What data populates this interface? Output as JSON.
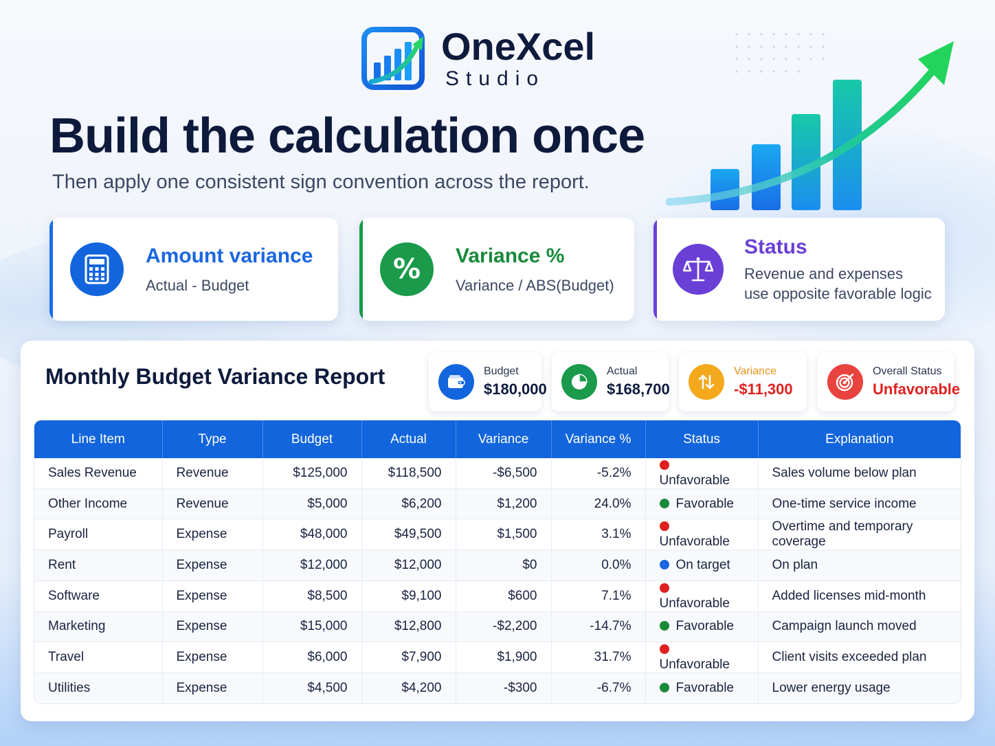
{
  "brand": {
    "name": "OneXcel",
    "sub": "Studio"
  },
  "hero": {
    "title": "Build the calculation once",
    "subtitle": "Then apply one consistent sign convention across the report."
  },
  "cards": [
    {
      "title": "Amount variance",
      "desc": "Actual - Budget",
      "icon": "calculator-icon",
      "color": "#1a6ee8"
    },
    {
      "title": "Variance %",
      "desc": "Variance / ABS(Budget)",
      "icon": "percent-icon",
      "color": "#1a9a4a"
    },
    {
      "title": "Status",
      "desc_line1": "Revenue and expenses",
      "desc_line2": "use opposite favorable logic",
      "icon": "balance-scale-icon",
      "color": "#6a3fd6"
    }
  ],
  "report": {
    "title": "Monthly Budget Variance Report",
    "kpis": [
      {
        "label": "Budget",
        "value": "$180,000",
        "icon": "wallet-icon",
        "color": "#1265dc"
      },
      {
        "label": "Actual",
        "value": "$168,700",
        "icon": "pie-chart-icon",
        "color": "#1a9a4a"
      },
      {
        "label": "Variance",
        "value": "-$11,300",
        "icon": "up-down-arrows-icon",
        "color": "#f4a81c"
      },
      {
        "label": "Overall Status",
        "value": "Unfavorable",
        "icon": "target-icon",
        "color": "#e8433f"
      }
    ],
    "columns": [
      "Line Item",
      "Type",
      "Budget",
      "Actual",
      "Variance",
      "Variance %",
      "Status",
      "Explanation"
    ],
    "rows": [
      {
        "item": "Sales Revenue",
        "type": "Revenue",
        "budget": "$125,000",
        "actual": "$118,500",
        "variance": "-$6,500",
        "pct": "-5.2%",
        "status": "Unfavorable",
        "expl": "Sales volume below plan",
        "tone": "neg",
        "st": "unf"
      },
      {
        "item": "Other Income",
        "type": "Revenue",
        "budget": "$5,000",
        "actual": "$6,200",
        "variance": "$1,200",
        "pct": "24.0%",
        "status": "Favorable",
        "expl": "One-time service income",
        "tone": "pos",
        "st": "fav"
      },
      {
        "item": "Payroll",
        "type": "Expense",
        "budget": "$48,000",
        "actual": "$49,500",
        "variance": "$1,500",
        "pct": "3.1%",
        "status": "Unfavorable",
        "expl": "Overtime and temporary coverage",
        "tone": "neg",
        "st": "unf"
      },
      {
        "item": "Rent",
        "type": "Expense",
        "budget": "$12,000",
        "actual": "$12,000",
        "variance": "$0",
        "pct": "0.0%",
        "status": "On target",
        "expl": "On plan",
        "tone": "neu",
        "st": "on"
      },
      {
        "item": "Software",
        "type": "Expense",
        "budget": "$8,500",
        "actual": "$9,100",
        "variance": "$600",
        "pct": "7.1%",
        "status": "Unfavorable",
        "expl": "Added licenses mid-month",
        "tone": "neg",
        "st": "unf"
      },
      {
        "item": "Marketing",
        "type": "Expense",
        "budget": "$15,000",
        "actual": "$12,800",
        "variance": "-$2,200",
        "pct": "-14.7%",
        "status": "Favorable",
        "expl": "Campaign launch moved",
        "tone": "pos",
        "st": "fav"
      },
      {
        "item": "Travel",
        "type": "Expense",
        "budget": "$6,000",
        "actual": "$7,900",
        "variance": "$1,900",
        "pct": "31.7%",
        "status": "Unfavorable",
        "expl": "Client visits exceeded plan",
        "tone": "neg",
        "st": "unf"
      },
      {
        "item": "Utilities",
        "type": "Expense",
        "budget": "$4,500",
        "actual": "$4,200",
        "variance": "-$300",
        "pct": "-6.7%",
        "status": "Favorable",
        "expl": "Lower energy usage",
        "tone": "pos",
        "st": "fav"
      }
    ]
  }
}
